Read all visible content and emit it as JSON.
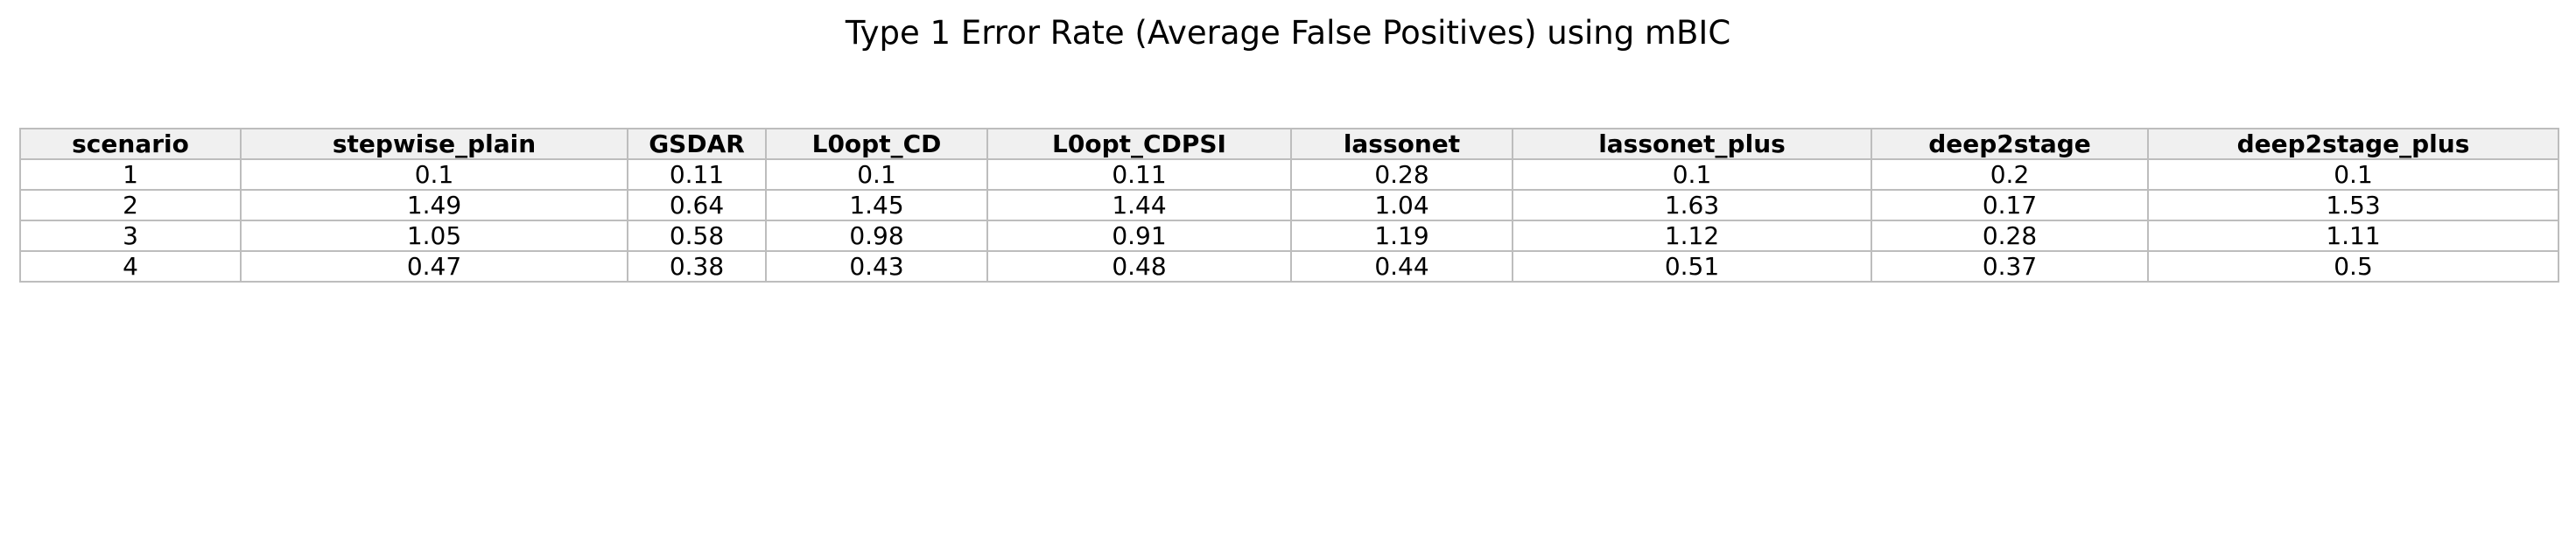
{
  "chart_data": {
    "type": "table",
    "title": "Type 1 Error Rate (Average False Positives) using mBIC",
    "columns": [
      "scenario",
      "stepwise_plain",
      "GSDAR",
      "L0opt_CD",
      "L0opt_CDPSI",
      "lassonet",
      "lassonet_plus",
      "deep2stage",
      "deep2stage_plus"
    ],
    "rows": [
      [
        "1",
        "0.1",
        "0.11",
        "0.1",
        "0.11",
        "0.28",
        "0.1",
        "0.2",
        "0.1"
      ],
      [
        "2",
        "1.49",
        "0.64",
        "1.45",
        "1.44",
        "1.04",
        "1.63",
        "0.17",
        "1.53"
      ],
      [
        "3",
        "1.05",
        "0.58",
        "0.98",
        "0.91",
        "1.19",
        "1.12",
        "0.28",
        "1.11"
      ],
      [
        "4",
        "0.47",
        "0.38",
        "0.43",
        "0.48",
        "0.44",
        "0.51",
        "0.37",
        "0.5"
      ]
    ],
    "header_background": "#f0f0f0",
    "border_color": "#bdbdbd"
  }
}
